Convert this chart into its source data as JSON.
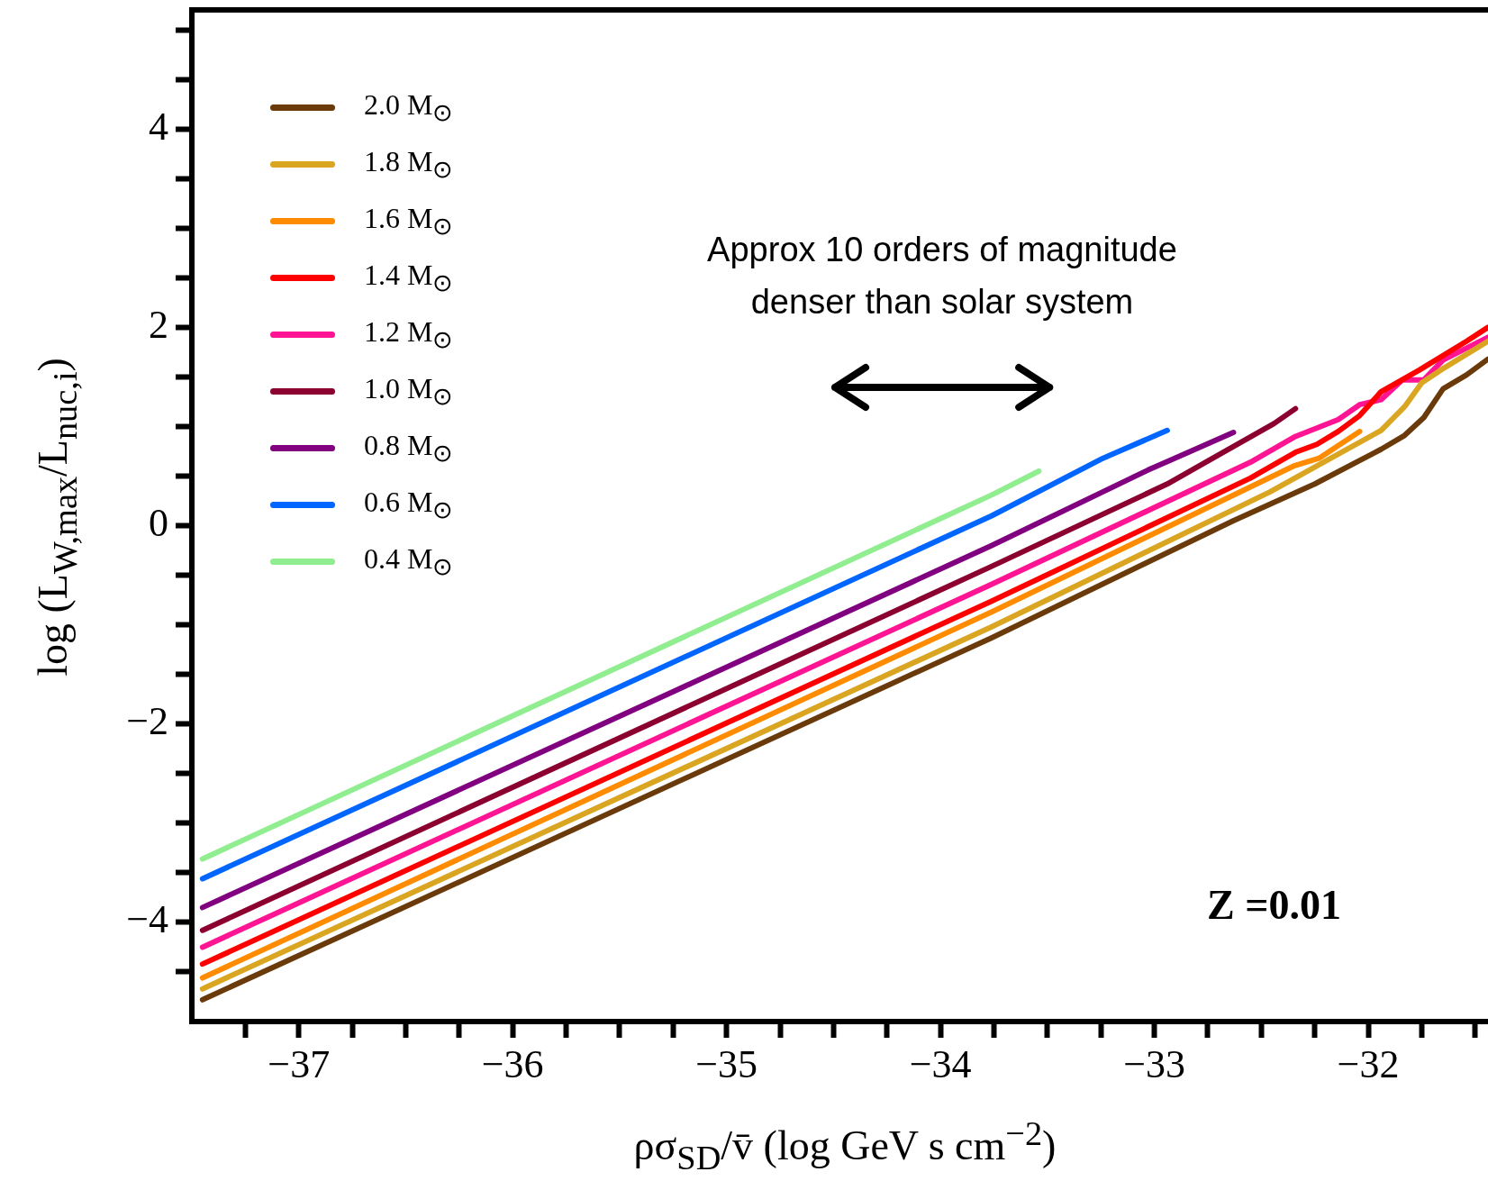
{
  "chart_data": {
    "type": "line",
    "xlabel": "ρσ$_{SD}$/v̄ (log GeV s cm$^{−2}$)",
    "ylabel": "log (L$_{W,max}$/L$_{nuc,i}$)",
    "xlim": [
      -37.5,
      -31.44
    ],
    "ylim": [
      -5,
      5.2
    ],
    "xticks": [
      {
        "value": -37.25,
        "label": null
      },
      {
        "value": -37,
        "label": "−37"
      },
      {
        "value": -36.75,
        "label": null
      },
      {
        "value": -36.5,
        "label": null
      },
      {
        "value": -36.25,
        "label": null
      },
      {
        "value": -36,
        "label": "−36"
      },
      {
        "value": -35.75,
        "label": null
      },
      {
        "value": -35.5,
        "label": null
      },
      {
        "value": -35.25,
        "label": null
      },
      {
        "value": -35,
        "label": "−35"
      },
      {
        "value": -34.75,
        "label": null
      },
      {
        "value": -34.5,
        "label": null
      },
      {
        "value": -34.25,
        "label": null
      },
      {
        "value": -34,
        "label": "−34"
      },
      {
        "value": -33.75,
        "label": null
      },
      {
        "value": -33.5,
        "label": null
      },
      {
        "value": -33.25,
        "label": null
      },
      {
        "value": -33,
        "label": "−33"
      },
      {
        "value": -32.75,
        "label": null
      },
      {
        "value": -32.5,
        "label": null
      },
      {
        "value": -32.25,
        "label": null
      },
      {
        "value": -32,
        "label": "−32"
      },
      {
        "value": -31.75,
        "label": null
      },
      {
        "value": -31.5,
        "label": null
      }
    ],
    "yticks": [
      {
        "value": -4.5,
        "label": null
      },
      {
        "value": -4,
        "label": "−4"
      },
      {
        "value": -3.5,
        "label": null
      },
      {
        "value": -3,
        "label": null
      },
      {
        "value": -2.5,
        "label": null
      },
      {
        "value": -2,
        "label": "−2"
      },
      {
        "value": -1.5,
        "label": null
      },
      {
        "value": -1,
        "label": null
      },
      {
        "value": -0.5,
        "label": null
      },
      {
        "value": 0,
        "label": "0"
      },
      {
        "value": 0.5,
        "label": null
      },
      {
        "value": 1,
        "label": null
      },
      {
        "value": 1.5,
        "label": null
      },
      {
        "value": 2,
        "label": "2"
      },
      {
        "value": 2.5,
        "label": null
      },
      {
        "value": 3,
        "label": null
      },
      {
        "value": 3.5,
        "label": null
      },
      {
        "value": 4,
        "label": "4"
      },
      {
        "value": 4.5,
        "label": null
      },
      {
        "value": 5,
        "label": null
      }
    ],
    "grid": false,
    "legend": "top left",
    "marker": "none",
    "line_style": "solid",
    "annotations": [
      "Approx 10 orders of magnitude denser than solar system",
      "Z =0.01"
    ],
    "series": [
      {
        "name": "2.0 M$_{⊙}$",
        "color": "#6b3a0a",
        "x": [
          -37.45,
          -33.76,
          -32.63,
          -32.25,
          -31.94,
          -31.83,
          -31.74,
          -31.65,
          -31.54,
          -31.44
        ],
        "values": [
          -4.78,
          -1.13,
          0.05,
          0.42,
          0.77,
          0.91,
          1.09,
          1.38,
          1.52,
          1.68
        ]
      },
      {
        "name": "1.8 M$_{⊙}$",
        "color": "#daa520",
        "x": [
          -37.45,
          -33.76,
          -32.46,
          -31.94,
          -31.83,
          -31.75,
          -31.66,
          -31.44
        ],
        "values": [
          -4.67,
          -1.02,
          0.34,
          0.96,
          1.2,
          1.44,
          1.57,
          1.86
        ]
      },
      {
        "name": "1.6 M$_{⊙}$",
        "color": "#ff8c00",
        "x": [
          -37.45,
          -33.76,
          -32.35,
          -32.23,
          -32.04
        ],
        "values": [
          -4.56,
          -0.87,
          0.6,
          0.68,
          0.95
        ]
      },
      {
        "name": "1.4 M$_{⊙}$",
        "color": "#ff0000",
        "x": [
          -37.45,
          -33.76,
          -32.55,
          -32.34,
          -32.24,
          -32.14,
          -32.04,
          -31.94,
          -31.76,
          -31.54,
          -31.44
        ],
        "values": [
          -4.42,
          -0.76,
          0.48,
          0.74,
          0.82,
          0.95,
          1.11,
          1.35,
          1.57,
          1.86,
          2.0
        ]
      },
      {
        "name": "1.2 M$_{⊙}$",
        "color": "#ff1493",
        "x": [
          -37.45,
          -33.76,
          -32.55,
          -32.34,
          -32.14,
          -32.04,
          -31.94,
          -31.84,
          -31.74,
          -31.65,
          -31.44
        ],
        "values": [
          -4.25,
          -0.59,
          0.64,
          0.9,
          1.07,
          1.22,
          1.27,
          1.47,
          1.47,
          1.67,
          1.9
        ]
      },
      {
        "name": "1.0 M$_{⊙}$",
        "color": "#8b0030",
        "x": [
          -37.45,
          -33.76,
          -32.94,
          -32.44,
          -32.34
        ],
        "values": [
          -4.08,
          -0.41,
          0.42,
          1.03,
          1.18
        ]
      },
      {
        "name": "0.8 M$_{⊙}$",
        "color": "#800080",
        "x": [
          -37.45,
          -33.76,
          -33.03,
          -32.63
        ],
        "values": [
          -3.85,
          -0.2,
          0.56,
          0.94
        ]
      },
      {
        "name": "0.6 M$_{⊙}$",
        "color": "#0066ff",
        "x": [
          -37.45,
          -33.76,
          -33.24,
          -32.94
        ],
        "values": [
          -3.56,
          0.1,
          0.68,
          0.96
        ]
      },
      {
        "name": "0.4 M$_{⊙}$",
        "color": "#90ee90",
        "x": [
          -37.45,
          -33.76,
          -33.54
        ],
        "values": [
          -3.36,
          0.31,
          0.55
        ]
      }
    ]
  }
}
